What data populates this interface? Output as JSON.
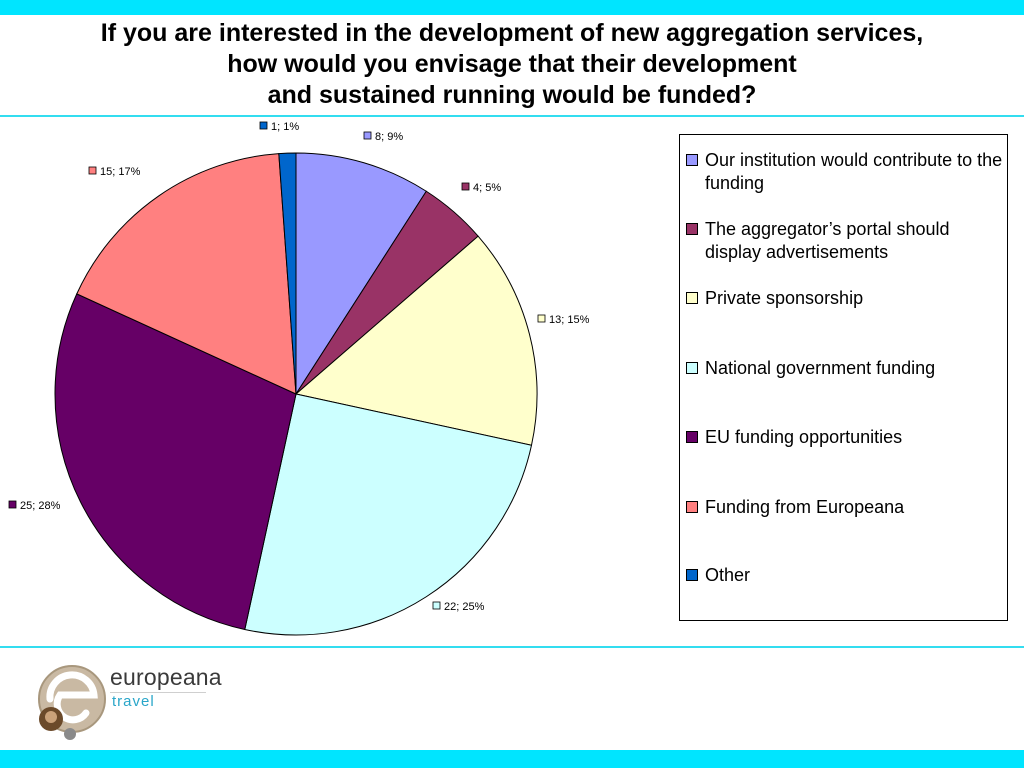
{
  "title_lines": [
    "If you are interested in the development of new aggregation services,",
    "how would you envisage that their development",
    "and sustained running would be funded?"
  ],
  "chart_data": {
    "type": "pie",
    "start_angle_deg": 0,
    "direction": "clockwise",
    "slices": [
      {
        "name": "Our institution would contribute to the funding",
        "value": 8,
        "percent": "9%",
        "label": "8; 9%",
        "color": "#9999ff"
      },
      {
        "name": "The aggregator’s portal should display advertisements",
        "value": 4,
        "percent": "5%",
        "label": "4; 5%",
        "color": "#993366"
      },
      {
        "name": "Private sponsorship",
        "value": 13,
        "percent": "15%",
        "label": "13; 15%",
        "color": "#ffffcc"
      },
      {
        "name": "National government funding",
        "value": 22,
        "percent": "25%",
        "label": "22; 25%",
        "color": "#ccffff"
      },
      {
        "name": "EU funding opportunities",
        "value": 25,
        "percent": "28%",
        "label": "25; 28%",
        "color": "#660066"
      },
      {
        "name": "Funding from Europeana",
        "value": 15,
        "percent": "17%",
        "label": "15; 17%",
        "color": "#ff8080"
      },
      {
        "name": "Other",
        "value": 1,
        "percent": "1%",
        "label": "1; 1%",
        "color": "#0066cc"
      }
    ],
    "legend_position": "right"
  },
  "legend": {
    "items": [
      {
        "label": "Our institution would contribute to the funding",
        "color": "#9999ff"
      },
      {
        "label": "The aggregator’s portal should display advertisements",
        "color": "#993366"
      },
      {
        "label": "Private sponsorship",
        "color": "#ffffcc"
      },
      {
        "label": "National government funding",
        "color": "#ccffff"
      },
      {
        "label": "EU funding opportunities",
        "color": "#660066"
      },
      {
        "label": "Funding from Europeana",
        "color": "#ff8080"
      },
      {
        "label": "Other",
        "color": "#0066cc"
      }
    ]
  },
  "logo": {
    "word": "europeana",
    "sub": "travel"
  },
  "colors": {
    "accent_bar": "#00e5ff"
  }
}
